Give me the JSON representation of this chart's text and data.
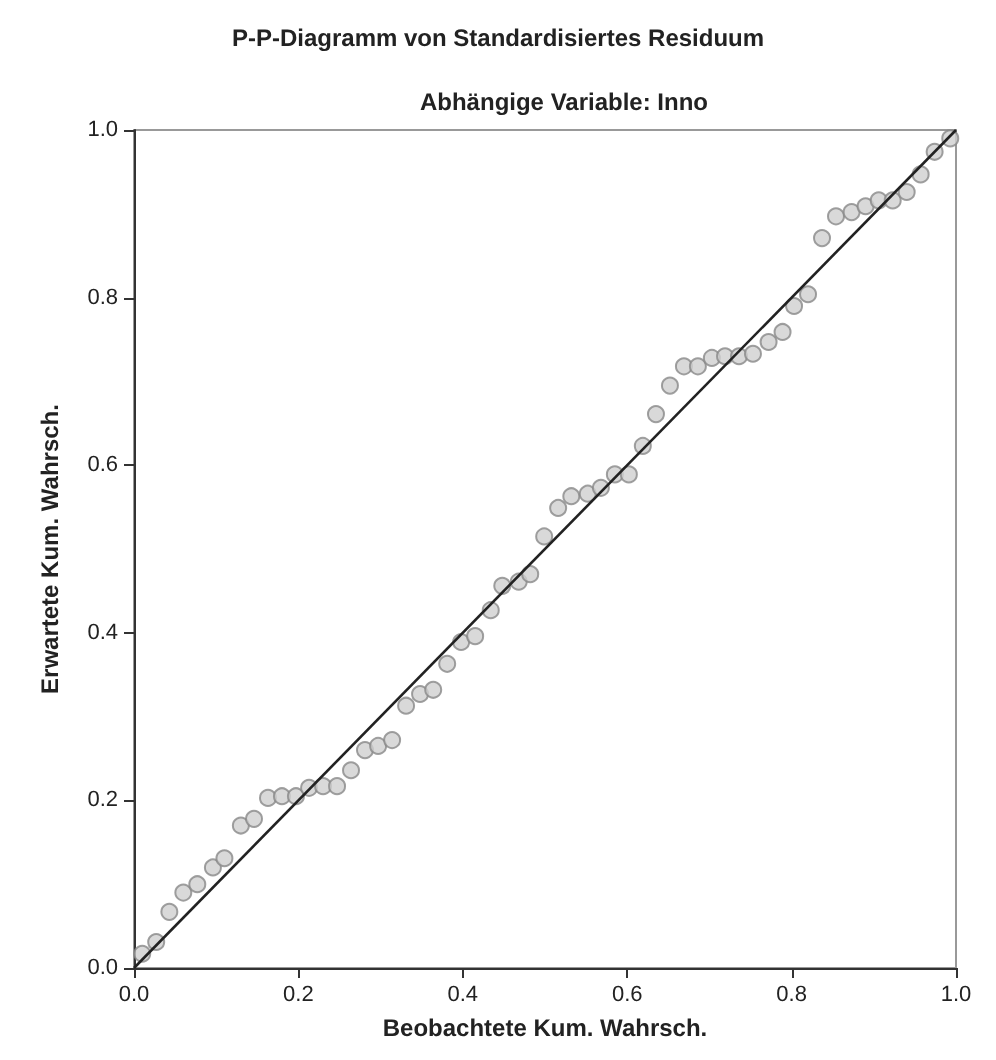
{
  "chart_data": {
    "type": "scatter",
    "title": "P-P-Diagramm von Standardisiertes Residuum",
    "subtitle": "Abhängige Variable: Inno",
    "xlabel": "Beobachtete Kum. Wahrsch.",
    "ylabel": "Erwartete Kum. Wahrsch.",
    "xlim": [
      0,
      1
    ],
    "ylim": [
      0,
      1
    ],
    "xticks": [
      {
        "value": 0,
        "label": "0.0"
      },
      0.2,
      0.4,
      0.6,
      0.8,
      {
        "value": 1,
        "label": "1.0"
      }
    ],
    "yticks": [
      {
        "value": 0,
        "label": "0.0"
      },
      0.2,
      0.4,
      0.6,
      0.8,
      {
        "value": 1,
        "label": "1.0"
      }
    ],
    "grid": false,
    "marker": "circle",
    "series": [
      {
        "color": "#d0d0d0",
        "x": [
          0.01,
          0.027,
          0.043,
          0.06,
          0.077,
          0.096,
          0.11,
          0.13,
          0.146,
          0.163,
          0.18,
          0.197,
          0.213,
          0.23,
          0.247,
          0.264,
          0.281,
          0.297,
          0.314,
          0.331,
          0.348,
          0.364,
          0.381,
          0.398,
          0.415,
          0.434,
          0.448,
          0.468,
          0.482,
          0.499,
          0.516,
          0.532,
          0.552,
          0.568,
          0.585,
          0.602,
          0.619,
          0.635,
          0.652,
          0.669,
          0.686,
          0.703,
          0.719,
          0.736,
          0.753,
          0.772,
          0.789,
          0.803,
          0.82,
          0.837,
          0.854,
          0.873,
          0.89,
          0.906,
          0.923,
          0.94,
          0.957,
          0.974,
          0.993
        ],
        "values": [
          0.017,
          0.031,
          0.067,
          0.09,
          0.1,
          0.12,
          0.131,
          0.17,
          0.178,
          0.203,
          0.205,
          0.205,
          0.215,
          0.217,
          0.217,
          0.236,
          0.26,
          0.265,
          0.272,
          0.313,
          0.327,
          0.332,
          0.363,
          0.389,
          0.396,
          0.427,
          0.456,
          0.461,
          0.47,
          0.515,
          0.549,
          0.563,
          0.566,
          0.573,
          0.589,
          0.589,
          0.623,
          0.661,
          0.695,
          0.718,
          0.718,
          0.728,
          0.73,
          0.73,
          0.733,
          0.747,
          0.759,
          0.79,
          0.804,
          0.871,
          0.897,
          0.902,
          0.909,
          0.916,
          0.916,
          0.926,
          0.947,
          0.974,
          0.99
        ]
      },
      {
        "type": "line",
        "color": "#222222",
        "x": [
          0,
          1
        ],
        "values": [
          0,
          1
        ],
        "marker": "none",
        "line_style": "solid"
      }
    ]
  }
}
